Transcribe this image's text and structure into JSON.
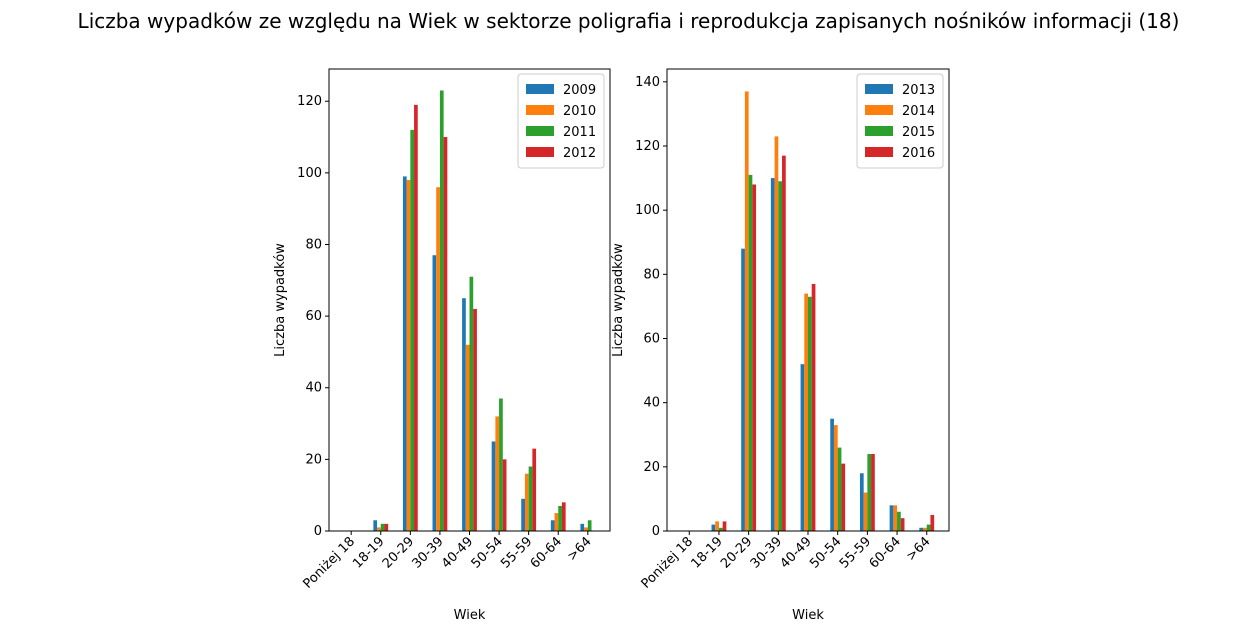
{
  "figure": {
    "title": "Liczba wypadków ze względu na Wiek w sektorze poligrafia i reprodukcja zapisanych nośników informacji  (18)"
  },
  "colors": {
    "series": [
      "#1f77b4",
      "#ff7f0e",
      "#2ca02c",
      "#d62728"
    ]
  },
  "chart_data": [
    {
      "type": "bar",
      "xlabel": "Wiek",
      "ylabel": "Liczba wypadków",
      "ylim": [
        0,
        129
      ],
      "yticks": [
        0,
        20,
        40,
        60,
        80,
        100,
        120
      ],
      "legend_position": "top-right",
      "categories": [
        "Poniżej 18",
        "18-19",
        "20-29",
        "30-39",
        "40-49",
        "50-54",
        "55-59",
        "60-64",
        ">64"
      ],
      "series": [
        {
          "name": "2009",
          "values": [
            0,
            3,
            99,
            77,
            65,
            25,
            9,
            3,
            2
          ]
        },
        {
          "name": "2010",
          "values": [
            0,
            1,
            98,
            96,
            52,
            32,
            16,
            5,
            1
          ]
        },
        {
          "name": "2011",
          "values": [
            0,
            2,
            112,
            123,
            71,
            37,
            18,
            7,
            3
          ]
        },
        {
          "name": "2012",
          "values": [
            0,
            2,
            119,
            110,
            62,
            20,
            23,
            8,
            0
          ]
        }
      ]
    },
    {
      "type": "bar",
      "xlabel": "Wiek",
      "ylabel": "Liczba wypadków",
      "ylim": [
        0,
        144
      ],
      "yticks": [
        0,
        20,
        40,
        60,
        80,
        100,
        120,
        140
      ],
      "legend_position": "top-right",
      "categories": [
        "Poniżej 18",
        "18-19",
        "20-29",
        "30-39",
        "40-49",
        "50-54",
        "55-59",
        "60-64",
        ">64"
      ],
      "series": [
        {
          "name": "2013",
          "values": [
            0,
            2,
            88,
            110,
            52,
            35,
            18,
            8,
            1
          ]
        },
        {
          "name": "2014",
          "values": [
            0,
            3,
            137,
            123,
            74,
            33,
            12,
            8,
            1
          ]
        },
        {
          "name": "2015",
          "values": [
            0,
            1,
            111,
            109,
            73,
            26,
            24,
            6,
            2
          ]
        },
        {
          "name": "2016",
          "values": [
            0,
            3,
            108,
            117,
            77,
            21,
            24,
            4,
            5
          ]
        }
      ]
    }
  ]
}
